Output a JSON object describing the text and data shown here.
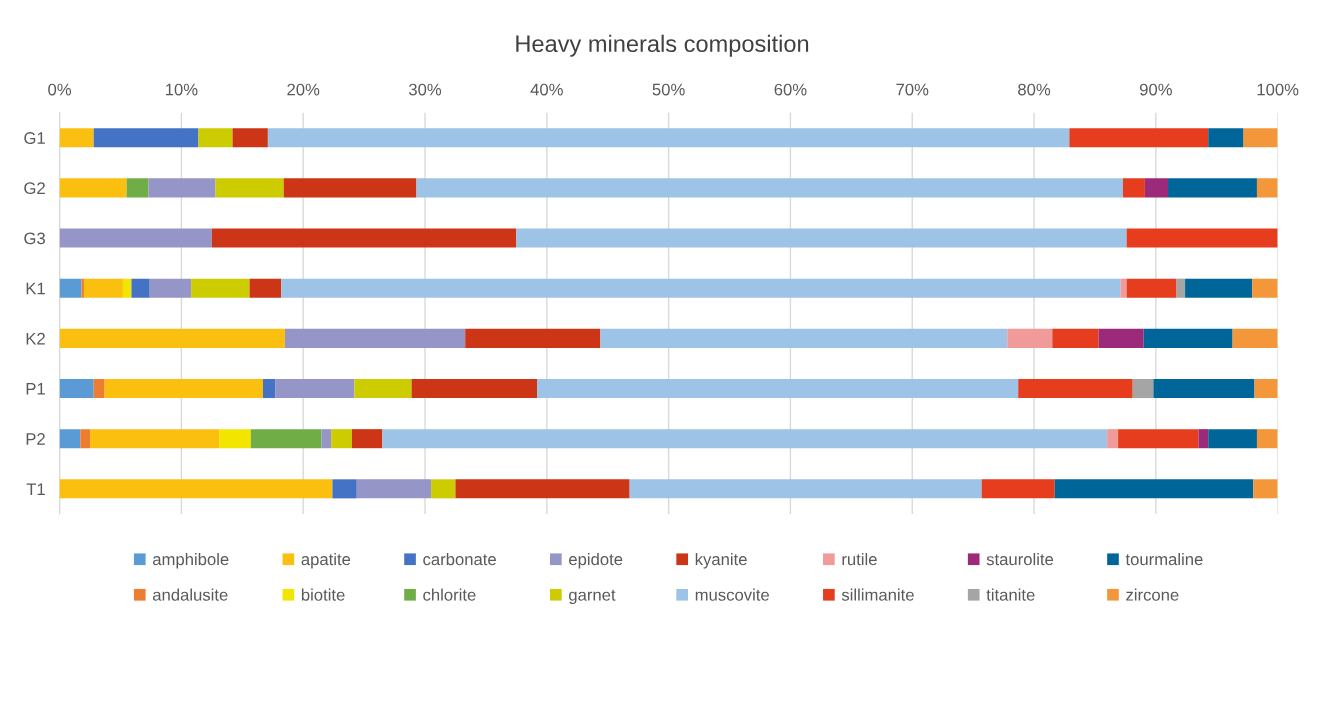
{
  "chart_data": {
    "type": "bar",
    "orientation": "horizontal",
    "stacked": true,
    "title": "Heavy minerals composition",
    "categories": [
      "G1",
      "G2",
      "G3",
      "K1",
      "K2",
      "P1",
      "P2",
      "T1"
    ],
    "xlim": [
      0,
      100
    ],
    "xticks": [
      {
        "value": 0,
        "label": "0%"
      },
      {
        "value": 10,
        "label": "10%"
      },
      {
        "value": 20,
        "label": "20%"
      },
      {
        "value": 30,
        "label": "30%"
      },
      {
        "value": 40,
        "label": "40%"
      },
      {
        "value": 50,
        "label": "50%"
      },
      {
        "value": 60,
        "label": "60%"
      },
      {
        "value": 70,
        "label": "70%"
      },
      {
        "value": 80,
        "label": "80%"
      },
      {
        "value": 90,
        "label": "90%"
      },
      {
        "value": 100,
        "label": "100%"
      }
    ],
    "grid": "x",
    "legend": "bottom",
    "series": [
      {
        "name": "amphibole",
        "color": "#5b9bd5",
        "values": [
          null,
          null,
          null,
          1.8,
          null,
          2.8,
          1.7,
          null
        ]
      },
      {
        "name": "andalusite",
        "color": "#ed7d31",
        "values": [
          null,
          null,
          null,
          0.2,
          null,
          0.9,
          0.8,
          null
        ]
      },
      {
        "name": "apatite",
        "color": "#fbbf10",
        "values": [
          2.8,
          5.5,
          null,
          3.2,
          18.5,
          13.0,
          10.6,
          22.4
        ]
      },
      {
        "name": "biotite",
        "color": "#f2e600",
        "values": [
          null,
          null,
          null,
          0.7,
          null,
          null,
          2.6,
          null
        ]
      },
      {
        "name": "carbonate",
        "color": "#4472c4",
        "values": [
          8.6,
          null,
          null,
          1.5,
          null,
          1.0,
          null,
          2.0
        ]
      },
      {
        "name": "chlorite",
        "color": "#70ad47",
        "values": [
          null,
          1.8,
          null,
          null,
          null,
          null,
          5.8,
          null
        ]
      },
      {
        "name": "epidote",
        "color": "#9595c8",
        "values": [
          null,
          5.5,
          12.5,
          3.4,
          14.8,
          6.5,
          0.8,
          6.1
        ]
      },
      {
        "name": "garnet",
        "color": "#cccc00",
        "values": [
          2.8,
          5.6,
          null,
          4.8,
          null,
          4.7,
          1.7,
          2.0
        ]
      },
      {
        "name": "kyanite",
        "color": "#cc3516",
        "values": [
          2.9,
          10.9,
          25.0,
          2.6,
          11.1,
          10.3,
          2.5,
          14.3
        ]
      },
      {
        "name": "muscovite",
        "color": "#9dc3e6",
        "values": [
          65.8,
          58.0,
          50.1,
          68.9,
          33.4,
          39.5,
          59.5,
          28.9
        ]
      },
      {
        "name": "rutile",
        "color": "#f19a9a",
        "values": [
          null,
          null,
          null,
          0.5,
          3.7,
          null,
          0.9,
          null
        ]
      },
      {
        "name": "sillimanite",
        "color": "#e63d1e",
        "values": [
          11.4,
          1.8,
          12.4,
          4.1,
          3.8,
          9.4,
          6.6,
          6.0
        ]
      },
      {
        "name": "staurolite",
        "color": "#9b2a7a",
        "values": [
          null,
          1.9,
          null,
          null,
          3.7,
          null,
          0.8,
          null
        ]
      },
      {
        "name": "titanite",
        "color": "#a5a5a5",
        "values": [
          null,
          null,
          null,
          0.7,
          null,
          1.7,
          null,
          null
        ]
      },
      {
        "name": "tourmaline",
        "color": "#006699",
        "values": [
          2.9,
          7.3,
          null,
          5.5,
          7.3,
          8.3,
          4.0,
          16.3
        ]
      },
      {
        "name": "zircone",
        "color": "#f4973a",
        "values": [
          2.8,
          1.7,
          null,
          2.1,
          3.7,
          1.9,
          1.7,
          2.0
        ]
      }
    ]
  }
}
